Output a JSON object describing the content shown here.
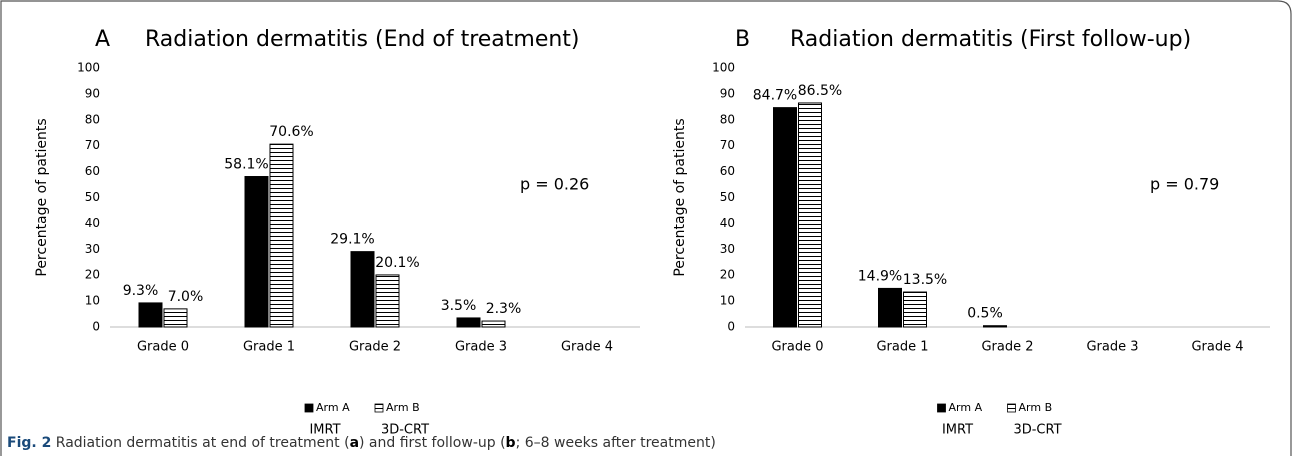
{
  "chart_data": [
    {
      "type": "bar",
      "panel": "A",
      "title": "Radiation dermatitis (End of treatment)",
      "ylabel": "Percentage of patients",
      "categories": [
        "Grade 0",
        "Grade 1",
        "Grade 2",
        "Grade 3",
        "Grade 4"
      ],
      "series": [
        {
          "name": "Arm A",
          "color": "#000000",
          "values": [
            9.3,
            58.1,
            29.1,
            3.5,
            0
          ],
          "value_labels": [
            "9.3%",
            "58.1%",
            "29.1%",
            "3.5%",
            null
          ]
        },
        {
          "name": "Arm B",
          "color": "hatched",
          "values": [
            7.0,
            70.6,
            20.1,
            2.3,
            0
          ],
          "value_labels": [
            "7.0%",
            "70.6%",
            "20.1%",
            "2.3%",
            null
          ]
        }
      ],
      "ylim": [
        0,
        100
      ],
      "yticks": [
        0,
        10,
        20,
        30,
        40,
        50,
        60,
        70,
        80,
        90,
        100
      ],
      "annotation": "p = 0.26",
      "legend_notes": [
        "IMRT",
        "3D-CRT"
      ],
      "legend": "bottom"
    },
    {
      "type": "bar",
      "panel": "B",
      "title": "Radiation dermatitis (First follow-up)",
      "ylabel": "Percentage of patients",
      "categories": [
        "Grade 0",
        "Grade 1",
        "Grade 2",
        "Grade 3",
        "Grade 4"
      ],
      "series": [
        {
          "name": "Arm A",
          "color": "#000000",
          "values": [
            84.7,
            14.9,
            0.5,
            0,
            0
          ],
          "value_labels": [
            "84.7%",
            "14.9%",
            "0.5%",
            null,
            null
          ]
        },
        {
          "name": "Arm B",
          "color": "hatched",
          "values": [
            86.5,
            13.5,
            0,
            0,
            0
          ],
          "value_labels": [
            "86.5%",
            "13.5%",
            null,
            null,
            null
          ]
        }
      ],
      "ylim": [
        0,
        100
      ],
      "yticks": [
        0,
        10,
        20,
        30,
        40,
        50,
        60,
        70,
        80,
        90,
        100
      ],
      "annotation": "p = 0.79",
      "legend_notes": [
        "IMRT",
        "3D-CRT"
      ],
      "legend": "bottom"
    }
  ],
  "caption": [
    "Fig. 2",
    " Radiation dermatitis at end of treatment (",
    "a",
    ") and first follow-up (",
    "b",
    "; 6–8 weeks after treatment)"
  ]
}
